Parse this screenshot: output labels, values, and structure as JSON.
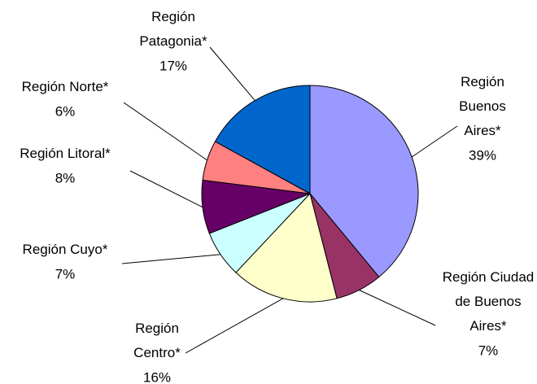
{
  "chart_data": {
    "type": "pie",
    "categories": [
      "Región\nBuenos\nAires*",
      "Región Ciudad\nde Buenos\nAires*",
      "Región\nCentro*",
      "Región Cuyo*",
      "Región Litoral*",
      "Región Norte*",
      "Región\nPatagonia*"
    ],
    "values": [
      39,
      7,
      16,
      7,
      8,
      6,
      17
    ],
    "value_labels": [
      "39%",
      "7%",
      "16%",
      "7%",
      "8%",
      "6%",
      "17%"
    ],
    "colors": [
      "#9999ff",
      "#993366",
      "#ffffcc",
      "#ccffff",
      "#660066",
      "#ff8080",
      "#0066cc"
    ]
  }
}
